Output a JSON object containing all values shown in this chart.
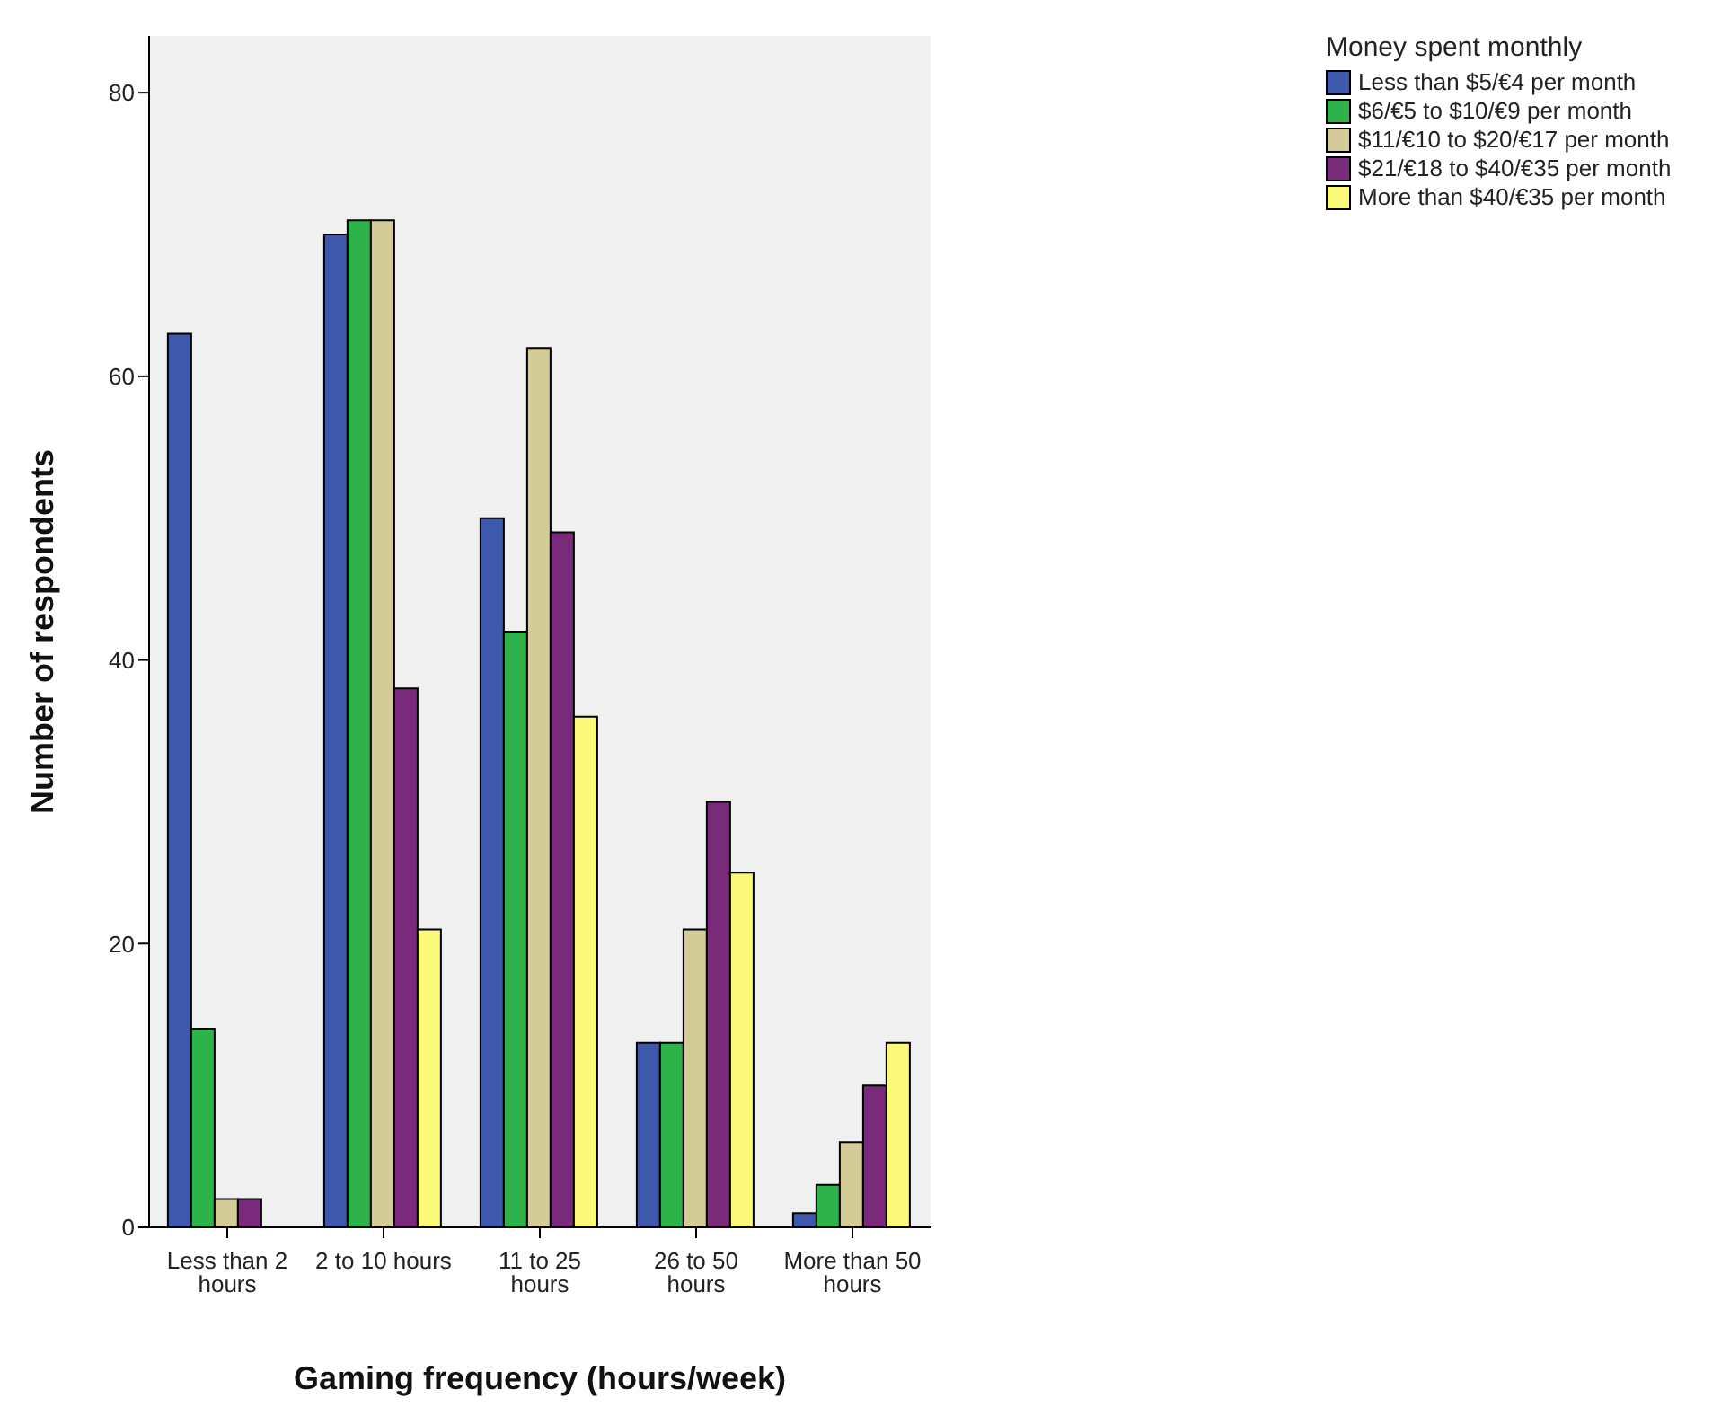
{
  "chart_data": {
    "type": "bar",
    "xlabel": "Gaming frequency (hours/week)",
    "ylabel": "Number of respondents",
    "legend_title": "Money spent monthly",
    "legend": "top right",
    "categories": [
      "Less than 2 hours",
      "2 to 10 hours",
      "11 to 25 hours",
      "26 to 50 hours",
      "More than 50 hours"
    ],
    "ylim": [
      0,
      84
    ],
    "yticks": [
      0,
      20,
      40,
      60,
      80
    ],
    "series": [
      {
        "name": "Less than $5/€4 per month",
        "color": "#3e58ac",
        "values": [
          63,
          70,
          50,
          13,
          1
        ]
      },
      {
        "name": "$6/€5 to $10/€9 per month",
        "color": "#2db34a",
        "values": [
          14,
          71,
          42,
          13,
          3
        ]
      },
      {
        "name": "$11/€10 to $20/€17 per month",
        "color": "#d4cc98",
        "values": [
          2,
          71,
          62,
          21,
          6
        ]
      },
      {
        "name": "$21/€18 to $40/€35 per month",
        "color": "#7a2a7a",
        "values": [
          2,
          38,
          49,
          30,
          10
        ]
      },
      {
        "name": "More than $40/€35 per month",
        "color": "#fbf97a",
        "values": [
          0,
          21,
          36,
          25,
          13
        ]
      }
    ]
  }
}
